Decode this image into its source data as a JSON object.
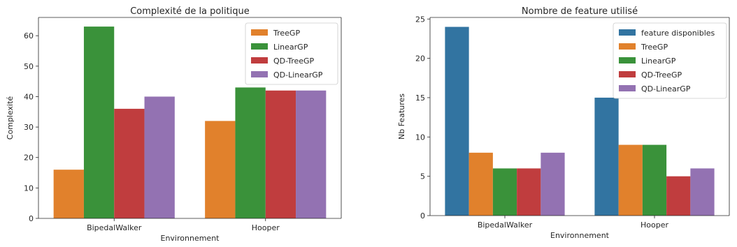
{
  "chart_data": [
    {
      "type": "bar",
      "title": "Complexité de la politique",
      "xlabel": "Environnement",
      "ylabel": "Complexité",
      "categories": [
        "BipedalWalker",
        "Hooper"
      ],
      "ylim": [
        0,
        66
      ],
      "yticks": [
        0,
        10,
        20,
        30,
        40,
        50,
        60
      ],
      "grid": false,
      "legend": "top-right",
      "series": [
        {
          "name": "TreeGP",
          "color": "#e1812c",
          "values": [
            16,
            32
          ]
        },
        {
          "name": "LinearGP",
          "color": "#3a923a",
          "values": [
            63,
            43
          ]
        },
        {
          "name": "QD-TreeGP",
          "color": "#c03d3e",
          "values": [
            36,
            42
          ]
        },
        {
          "name": "QD-LinearGP",
          "color": "#9372b2",
          "values": [
            40,
            42
          ]
        }
      ]
    },
    {
      "type": "bar",
      "title": "Nombre de feature utilisé",
      "xlabel": "Environnement",
      "ylabel": "Nb Features",
      "categories": [
        "BipedalWalker",
        "Hooper"
      ],
      "ylim": [
        0,
        25.2
      ],
      "yticks": [
        0,
        5,
        10,
        15,
        20,
        25
      ],
      "grid": false,
      "legend": "top-right",
      "series": [
        {
          "name": "feature disponibles",
          "color": "#3274a1",
          "values": [
            24,
            15
          ]
        },
        {
          "name": "TreeGP",
          "color": "#e1812c",
          "values": [
            8,
            9
          ]
        },
        {
          "name": "LinearGP",
          "color": "#3a923a",
          "values": [
            6,
            9
          ]
        },
        {
          "name": "QD-TreeGP",
          "color": "#c03d3e",
          "values": [
            6,
            5
          ]
        },
        {
          "name": "QD-LinearGP",
          "color": "#9372b2",
          "values": [
            8,
            6
          ]
        }
      ]
    }
  ]
}
